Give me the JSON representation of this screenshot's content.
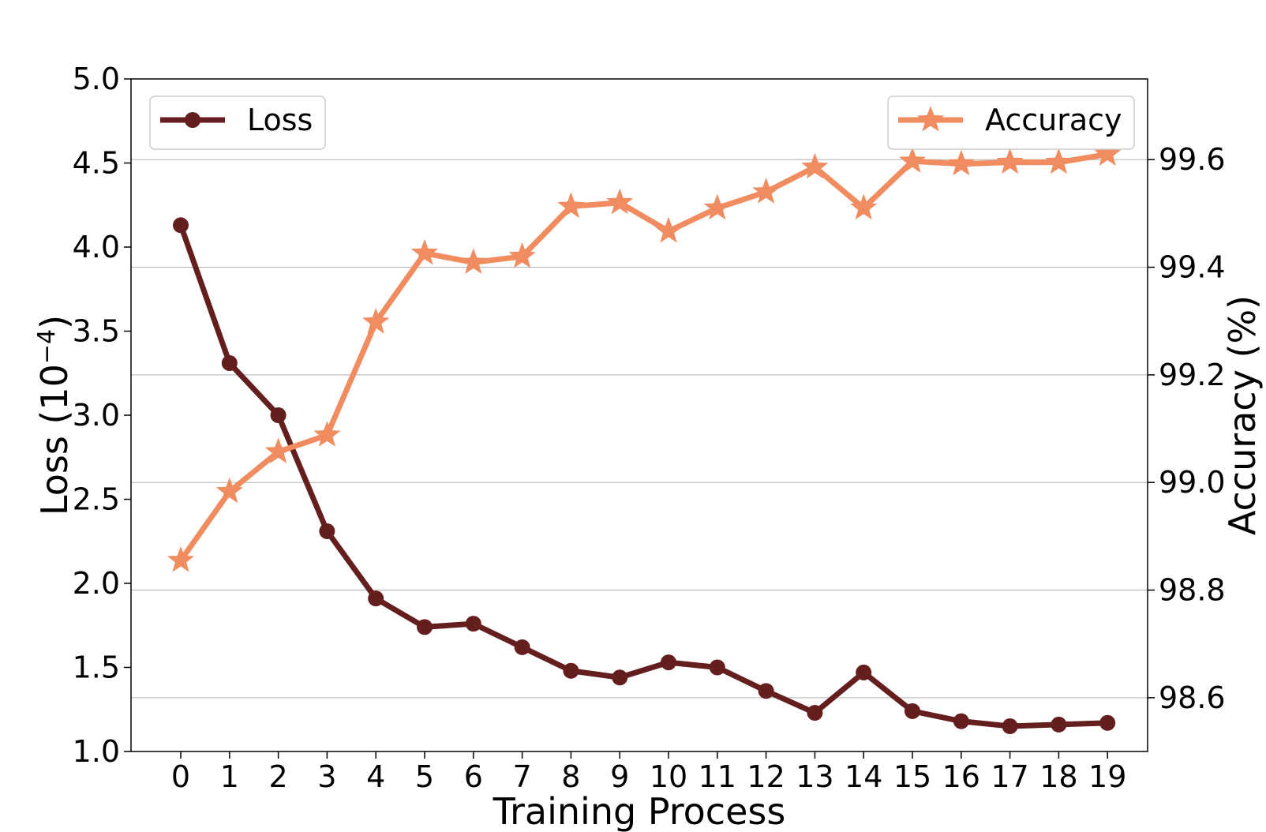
{
  "chart_data": {
    "type": "line",
    "x": [
      0,
      1,
      2,
      3,
      4,
      5,
      6,
      7,
      8,
      9,
      10,
      11,
      12,
      13,
      14,
      15,
      16,
      17,
      18,
      19
    ],
    "xlabel": "Training Process",
    "y_left": {
      "label_text": "Loss (10",
      "label_exponent": "−4",
      "label_close": ")",
      "ylim": [
        1.0,
        5.0
      ],
      "ticks": [
        "1.0",
        "1.5",
        "2.0",
        "2.5",
        "3.0",
        "3.5",
        "4.0",
        "4.5",
        "5.0"
      ]
    },
    "y_right": {
      "label": "Accuracy (%)",
      "ylim": [
        98.5,
        99.75
      ],
      "ticks": [
        "98.6",
        "98.8",
        "99.0",
        "99.2",
        "99.4",
        "99.6"
      ],
      "grid": true
    },
    "series": [
      {
        "name": "Loss",
        "axis": "left",
        "marker": "circle",
        "color": "#641e1e",
        "values": [
          4.13,
          3.31,
          3.0,
          2.31,
          1.91,
          1.74,
          1.76,
          1.62,
          1.48,
          1.44,
          1.53,
          1.5,
          1.36,
          1.23,
          1.47,
          1.24,
          1.18,
          1.15,
          1.16,
          1.17
        ]
      },
      {
        "name": "Accuracy",
        "axis": "right",
        "marker": "star",
        "color": "#f08c5f",
        "values": [
          98.855,
          98.983,
          99.057,
          99.088,
          99.298,
          99.426,
          99.409,
          99.42,
          99.513,
          99.52,
          99.467,
          99.51,
          99.54,
          99.586,
          99.51,
          99.597,
          99.592,
          99.595,
          99.595,
          99.61
        ]
      }
    ],
    "legend": [
      {
        "series": "Loss",
        "placement": "top-left"
      },
      {
        "series": "Accuracy",
        "placement": "top-right"
      }
    ]
  }
}
